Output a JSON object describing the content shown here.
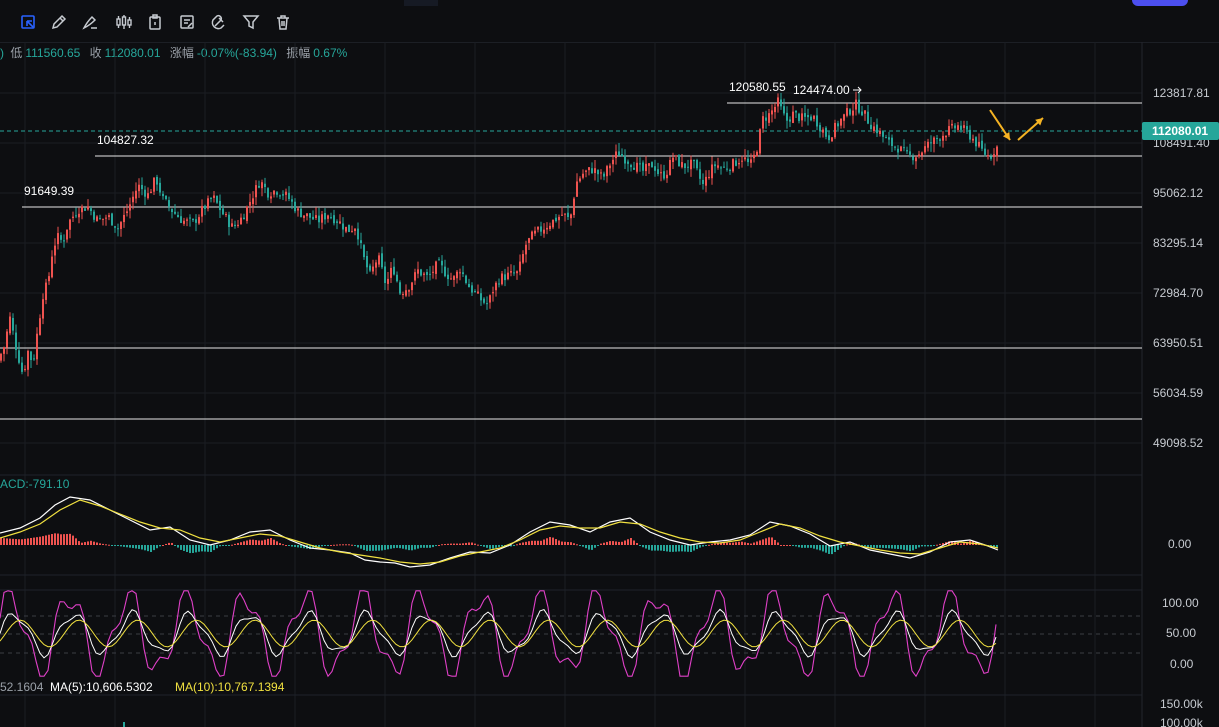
{
  "toolbar": {
    "tools": [
      {
        "icon": "select-icon",
        "active": true
      },
      {
        "icon": "pencil-icon"
      },
      {
        "icon": "brush-icon"
      },
      {
        "icon": "candles-icon"
      },
      {
        "icon": "clipboard-icon"
      },
      {
        "icon": "note-icon"
      },
      {
        "icon": "magnet-icon"
      },
      {
        "icon": "filter-icon"
      },
      {
        "icon": "trash-icon"
      }
    ]
  },
  "ohlc": {
    "low_label": "低",
    "low_value": "111560.65",
    "close_label": "收",
    "close_value": "112080.01",
    "change_label": "涨幅",
    "change_value": "-0.07%(-83.94)",
    "amp_label": "振幅",
    "amp_value": "0.67%"
  },
  "colors": {
    "up": "#ef5350",
    "down": "#26a69a",
    "accent": "#2962ff",
    "macd_signal": "#f0e040",
    "kdj_k": "#ffffff",
    "kdj_d": "#f0e040",
    "kdj_j": "#e040c8"
  },
  "chart_data": {
    "type": "candlestick",
    "y_axis_labels": [
      "123817.81",
      "108491.40",
      "95062.12",
      "83295.14",
      "72984.70",
      "63950.51",
      "56034.59",
      "49098.52"
    ],
    "ylim": [
      44000,
      130000
    ],
    "current_price": {
      "label": "112080.01",
      "value": 112080.01
    },
    "horizontal_levels": [
      {
        "value": 120580.55,
        "label": "120580.55"
      },
      {
        "value": 104827.32,
        "label": "104827.32"
      },
      {
        "value": 91649.39,
        "label": "91649.39"
      },
      {
        "value": 63950.51,
        "label": ""
      },
      {
        "value": 52500,
        "label": ""
      }
    ],
    "peak_annotation": {
      "label": "124474.00",
      "value": 124474.0
    },
    "price_path": [
      [
        0,
        67000
      ],
      [
        6,
        70000
      ],
      [
        12,
        76000
      ],
      [
        18,
        70000
      ],
      [
        25,
        64000
      ],
      [
        30,
        69000
      ],
      [
        35,
        66500
      ],
      [
        40,
        74000
      ],
      [
        45,
        81000
      ],
      [
        50,
        83500
      ],
      [
        55,
        91000
      ],
      [
        60,
        93000
      ],
      [
        65,
        92000
      ],
      [
        70,
        96000
      ],
      [
        80,
        99000
      ],
      [
        90,
        99500
      ],
      [
        100,
        96500
      ],
      [
        110,
        97500
      ],
      [
        120,
        95000
      ],
      [
        130,
        99000
      ],
      [
        140,
        104000
      ],
      [
        150,
        102000
      ],
      [
        158,
        105500
      ],
      [
        165,
        101000
      ],
      [
        175,
        98500
      ],
      [
        185,
        96500
      ],
      [
        195,
        96000
      ],
      [
        205,
        99000
      ],
      [
        215,
        101500
      ],
      [
        225,
        98000
      ],
      [
        235,
        95000
      ],
      [
        245,
        97500
      ],
      [
        255,
        102000
      ],
      [
        262,
        105000
      ],
      [
        270,
        102500
      ],
      [
        280,
        103000
      ],
      [
        290,
        101500
      ],
      [
        300,
        98500
      ],
      [
        310,
        97500
      ],
      [
        320,
        96500
      ],
      [
        330,
        98000
      ],
      [
        340,
        96500
      ],
      [
        350,
        94500
      ],
      [
        358,
        95500
      ],
      [
        365,
        89000
      ],
      [
        372,
        85000
      ],
      [
        380,
        89000
      ],
      [
        388,
        83000
      ],
      [
        395,
        87000
      ],
      [
        402,
        81500
      ],
      [
        410,
        82500
      ],
      [
        420,
        86000
      ],
      [
        430,
        84500
      ],
      [
        440,
        87500
      ],
      [
        448,
        85500
      ],
      [
        455,
        84000
      ],
      [
        462,
        86500
      ],
      [
        470,
        83000
      ],
      [
        478,
        81000
      ],
      [
        485,
        79500
      ],
      [
        490,
        79000
      ],
      [
        495,
        82000
      ],
      [
        502,
        84500
      ],
      [
        510,
        85000
      ],
      [
        520,
        85500
      ],
      [
        528,
        91500
      ],
      [
        535,
        93500
      ],
      [
        545,
        95000
      ],
      [
        555,
        96500
      ],
      [
        565,
        98000
      ],
      [
        572,
        96500
      ],
      [
        578,
        104500
      ],
      [
        585,
        106500
      ],
      [
        595,
        107500
      ],
      [
        605,
        105500
      ],
      [
        612,
        108500
      ],
      [
        620,
        111000
      ],
      [
        628,
        109500
      ],
      [
        635,
        108500
      ],
      [
        645,
        107000
      ],
      [
        655,
        108500
      ],
      [
        662,
        106000
      ],
      [
        668,
        106500
      ],
      [
        675,
        110000
      ],
      [
        685,
        108000
      ],
      [
        695,
        108500
      ],
      [
        705,
        104000
      ],
      [
        712,
        107000
      ],
      [
        718,
        108500
      ],
      [
        725,
        107500
      ],
      [
        735,
        108500
      ],
      [
        745,
        110000
      ],
      [
        752,
        108000
      ],
      [
        758,
        111000
      ],
      [
        765,
        118000
      ],
      [
        772,
        119000
      ],
      [
        780,
        121500
      ],
      [
        788,
        117500
      ],
      [
        795,
        119000
      ],
      [
        805,
        118000
      ],
      [
        815,
        118500
      ],
      [
        822,
        116500
      ],
      [
        830,
        114000
      ],
      [
        840,
        117000
      ],
      [
        850,
        119500
      ],
      [
        858,
        121000
      ],
      [
        865,
        119500
      ],
      [
        872,
        117000
      ],
      [
        880,
        115500
      ],
      [
        890,
        113000
      ],
      [
        900,
        112000
      ],
      [
        910,
        110000
      ],
      [
        920,
        110500
      ],
      [
        930,
        112500
      ],
      [
        940,
        114000
      ],
      [
        950,
        115500
      ],
      [
        960,
        116500
      ],
      [
        970,
        115000
      ],
      [
        978,
        113000
      ],
      [
        985,
        111000
      ],
      [
        992,
        110000
      ],
      [
        998,
        112080
      ]
    ],
    "macd": {
      "label": "ACD:-791.10",
      "axis_label": "0.00",
      "diff": [
        [
          0,
          533
        ],
        [
          20,
          528
        ],
        [
          40,
          518
        ],
        [
          55,
          505
        ],
        [
          70,
          497
        ],
        [
          90,
          500
        ],
        [
          110,
          510
        ],
        [
          130,
          520
        ],
        [
          150,
          530
        ],
        [
          170,
          527
        ],
        [
          190,
          540
        ],
        [
          210,
          545
        ],
        [
          230,
          540
        ],
        [
          250,
          532
        ],
        [
          270,
          530
        ],
        [
          290,
          540
        ],
        [
          310,
          548
        ],
        [
          330,
          550
        ],
        [
          350,
          553
        ],
        [
          365,
          560
        ],
        [
          380,
          562
        ],
        [
          395,
          563
        ],
        [
          410,
          567
        ],
        [
          430,
          565
        ],
        [
          450,
          558
        ],
        [
          470,
          552
        ],
        [
          490,
          553
        ],
        [
          510,
          545
        ],
        [
          530,
          532
        ],
        [
          550,
          522
        ],
        [
          570,
          525
        ],
        [
          590,
          532
        ],
        [
          610,
          522
        ],
        [
          630,
          518
        ],
        [
          650,
          532
        ],
        [
          670,
          540
        ],
        [
          690,
          545
        ],
        [
          710,
          542
        ],
        [
          730,
          540
        ],
        [
          750,
          535
        ],
        [
          770,
          522
        ],
        [
          790,
          526
        ],
        [
          810,
          534
        ],
        [
          830,
          546
        ],
        [
          850,
          542
        ],
        [
          870,
          550
        ],
        [
          890,
          554
        ],
        [
          910,
          558
        ],
        [
          930,
          552
        ],
        [
          950,
          542
        ],
        [
          970,
          540
        ],
        [
          985,
          545
        ],
        [
          998,
          550
        ]
      ],
      "dea": [
        [
          0,
          538
        ],
        [
          20,
          532
        ],
        [
          40,
          524
        ],
        [
          60,
          510
        ],
        [
          80,
          500
        ],
        [
          100,
          506
        ],
        [
          120,
          514
        ],
        [
          140,
          522
        ],
        [
          160,
          528
        ],
        [
          180,
          530
        ],
        [
          200,
          538
        ],
        [
          220,
          542
        ],
        [
          240,
          538
        ],
        [
          260,
          534
        ],
        [
          280,
          536
        ],
        [
          300,
          542
        ],
        [
          320,
          548
        ],
        [
          340,
          552
        ],
        [
          360,
          555
        ],
        [
          380,
          558
        ],
        [
          400,
          562
        ],
        [
          420,
          564
        ],
        [
          440,
          562
        ],
        [
          460,
          556
        ],
        [
          480,
          552
        ],
        [
          500,
          548
        ],
        [
          520,
          540
        ],
        [
          540,
          530
        ],
        [
          560,
          526
        ],
        [
          580,
          528
        ],
        [
          600,
          528
        ],
        [
          620,
          522
        ],
        [
          640,
          524
        ],
        [
          660,
          532
        ],
        [
          680,
          538
        ],
        [
          700,
          542
        ],
        [
          720,
          543
        ],
        [
          740,
          540
        ],
        [
          760,
          532
        ],
        [
          780,
          524
        ],
        [
          800,
          528
        ],
        [
          820,
          536
        ],
        [
          840,
          542
        ],
        [
          860,
          546
        ],
        [
          880,
          550
        ],
        [
          900,
          553
        ],
        [
          920,
          554
        ],
        [
          940,
          548
        ],
        [
          960,
          542
        ],
        [
          980,
          544
        ],
        [
          998,
          548
        ]
      ]
    },
    "kdj": {
      "y_axis_labels": [
        "100.00",
        "50.00",
        "0.00"
      ],
      "ylim": [
        0,
        100
      ],
      "cycles": 17
    },
    "volume": {
      "prefix_label": "52.1604",
      "ma5_label": "MA(5):10,606.5302",
      "ma10_label": "MA(10):10,767.1394",
      "y_axis_labels": [
        "150.00k",
        "100.00k"
      ]
    },
    "forecast_arrows": [
      {
        "direction": "down",
        "from": [
          990,
          110
        ],
        "to": [
          1010,
          140
        ]
      },
      {
        "direction": "up",
        "from": [
          1018,
          140
        ],
        "to": [
          1043,
          118
        ]
      }
    ]
  }
}
